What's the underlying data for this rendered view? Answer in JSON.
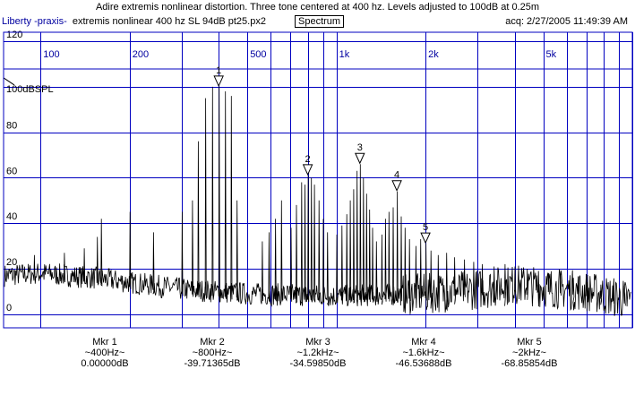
{
  "header": {
    "title": "Adire extremis nonlinear distortion. Three tone centered at 400 hz. Levels adjusted to 100dB at 0.25m",
    "app_name": "Liberty -praxis-",
    "file_label": "extremis nonlinear 400 hz SL 94dB pt25.px2",
    "view_button": "Spectrum",
    "acq": "acq: 2/27/2005 11:49:39 AM"
  },
  "chart_data": {
    "type": "line",
    "x_scale": "log",
    "xlim": [
      75,
      10000
    ],
    "ylim": [
      -6,
      124
    ],
    "x_tick_labels": [
      {
        "label": "100",
        "x": 100
      },
      {
        "label": "200",
        "x": 200
      },
      {
        "label": "500",
        "x": 500
      },
      {
        "label": "1k",
        "x": 1000
      },
      {
        "label": "2k",
        "x": 2000
      },
      {
        "label": "5k",
        "x": 5000
      }
    ],
    "x_gridlines": [
      100,
      200,
      300,
      400,
      500,
      600,
      700,
      800,
      900,
      1000,
      2000,
      3000,
      4000,
      5000,
      6000,
      7000,
      8000,
      9000,
      10000
    ],
    "y_ticks": [
      0,
      20,
      40,
      60,
      80,
      100,
      120
    ],
    "y_tick_labels": [
      "0",
      "20",
      "40",
      "60",
      "80",
      "",
      "120"
    ],
    "reference_label": "100dBSPL",
    "reference_level": 100,
    "noise_floor": [
      [
        75,
        17
      ],
      [
        100,
        18
      ],
      [
        150,
        16
      ],
      [
        200,
        14
      ],
      [
        300,
        11
      ],
      [
        500,
        9
      ],
      [
        1000,
        8
      ],
      [
        2000,
        9
      ],
      [
        3000,
        11
      ],
      [
        4000,
        13
      ],
      [
        5000,
        12
      ],
      [
        7000,
        10
      ],
      [
        10000,
        6
      ]
    ],
    "peaks": [
      [
        95,
        26
      ],
      [
        120,
        27
      ],
      [
        140,
        29
      ],
      [
        155,
        34
      ],
      [
        160,
        42
      ],
      [
        200,
        45
      ],
      [
        240,
        36
      ],
      [
        300,
        45
      ],
      [
        325,
        50
      ],
      [
        340,
        76
      ],
      [
        360,
        95
      ],
      [
        380,
        100
      ],
      [
        400,
        100
      ],
      [
        420,
        98
      ],
      [
        440,
        96
      ],
      [
        460,
        50
      ],
      [
        560,
        32
      ],
      [
        590,
        36
      ],
      [
        620,
        42
      ],
      [
        650,
        50
      ],
      [
        700,
        38
      ],
      [
        730,
        48
      ],
      [
        760,
        58
      ],
      [
        780,
        57
      ],
      [
        800,
        61
      ],
      [
        820,
        60
      ],
      [
        840,
        57
      ],
      [
        870,
        50
      ],
      [
        900,
        42
      ],
      [
        930,
        36
      ],
      [
        1000,
        35
      ],
      [
        1040,
        39
      ],
      [
        1080,
        44
      ],
      [
        1110,
        50
      ],
      [
        1140,
        55
      ],
      [
        1170,
        63
      ],
      [
        1200,
        66
      ],
      [
        1230,
        60
      ],
      [
        1260,
        53
      ],
      [
        1290,
        46
      ],
      [
        1320,
        38
      ],
      [
        1360,
        32
      ],
      [
        1420,
        35
      ],
      [
        1460,
        42
      ],
      [
        1500,
        45
      ],
      [
        1550,
        47
      ],
      [
        1600,
        54
      ],
      [
        1650,
        43
      ],
      [
        1700,
        38
      ],
      [
        1760,
        33
      ],
      [
        1850,
        30
      ],
      [
        1920,
        33
      ],
      [
        2000,
        31
      ],
      [
        2080,
        28
      ],
      [
        2200,
        26
      ],
      [
        2350,
        27
      ],
      [
        2500,
        25
      ],
      [
        2700,
        24
      ],
      [
        2900,
        23
      ],
      [
        3100,
        22
      ],
      [
        3400,
        21
      ],
      [
        3700,
        22
      ],
      [
        4000,
        21
      ],
      [
        4400,
        20
      ],
      [
        4800,
        19
      ],
      [
        5200,
        18
      ],
      [
        5700,
        17
      ],
      [
        6300,
        16
      ],
      [
        7000,
        14
      ],
      [
        7800,
        13
      ],
      [
        8600,
        12
      ],
      [
        9400,
        10
      ]
    ],
    "markers": [
      {
        "id": "1",
        "x": 400,
        "y": 100,
        "name": "Mkr 1",
        "freq": "~400Hz~",
        "value": "0.00000dB"
      },
      {
        "id": "2",
        "x": 800,
        "y": 61,
        "name": "Mkr 2",
        "freq": "~800Hz~",
        "value": "-39.71365dB"
      },
      {
        "id": "3",
        "x": 1200,
        "y": 66,
        "name": "Mkr 3",
        "freq": "~1.2kHz~",
        "value": "-34.59850dB"
      },
      {
        "id": "4",
        "x": 1600,
        "y": 54,
        "name": "Mkr 4",
        "freq": "~1.6kHz~",
        "value": "-46.53688dB"
      },
      {
        "id": "5",
        "x": 2000,
        "y": 31,
        "name": "Mkr 5",
        "freq": "~2kHz~",
        "value": "-68.85854dB"
      }
    ],
    "colors": {
      "grid": "#0000c0",
      "trace": "#000000",
      "label": "#0000a0"
    }
  }
}
